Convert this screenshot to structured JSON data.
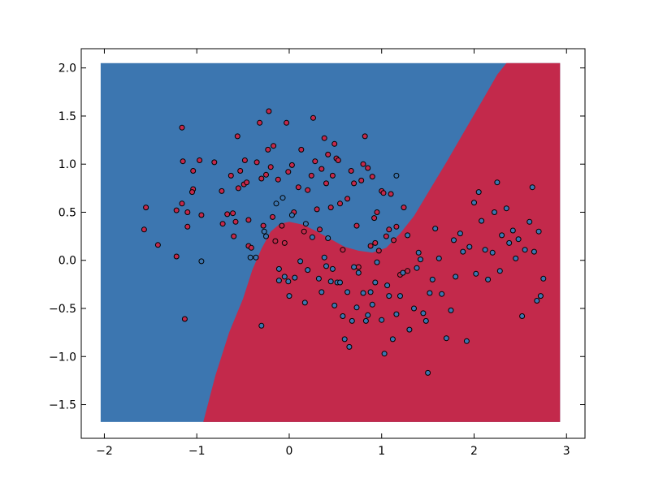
{
  "chart_data": {
    "type": "scatter",
    "title": "",
    "xlabel": "",
    "ylabel": "",
    "xlim": [
      -2.25,
      3.2
    ],
    "ylim": [
      -1.85,
      2.2
    ],
    "x_ticks": [
      {
        "value": -2,
        "label": "−2"
      },
      {
        "value": -1,
        "label": "−1"
      },
      {
        "value": 0,
        "label": "0"
      },
      {
        "value": 1,
        "label": "1"
      },
      {
        "value": 2,
        "label": "2"
      },
      {
        "value": 3,
        "label": "3"
      }
    ],
    "y_ticks": [
      {
        "value": 2.0,
        "label": "2.0"
      },
      {
        "value": 1.5,
        "label": "1.5"
      },
      {
        "value": 1.0,
        "label": "1.0"
      },
      {
        "value": 0.5,
        "label": "0.5"
      },
      {
        "value": 0.0,
        "label": "0.0"
      },
      {
        "value": -0.5,
        "label": "−0.5"
      },
      {
        "value": -1.0,
        "label": "−1.0"
      },
      {
        "value": -1.5,
        "label": "−1.5"
      }
    ],
    "grid": false,
    "legend": "none",
    "decision_region": {
      "x_range": [
        -2.04,
        2.93
      ],
      "y_range": [
        -1.68,
        2.05
      ],
      "upper_left_color": "#3c76b0",
      "lower_right_color": "#c3294b",
      "boundary": [
        [
          -0.93,
          -1.68
        ],
        [
          -0.8,
          -1.2
        ],
        [
          -0.65,
          -0.75
        ],
        [
          -0.5,
          -0.4
        ],
        [
          -0.4,
          -0.1
        ],
        [
          -0.3,
          0.12
        ],
        [
          -0.2,
          0.3
        ],
        [
          -0.1,
          0.38
        ],
        [
          0.0,
          0.4
        ],
        [
          0.15,
          0.37
        ],
        [
          0.3,
          0.3
        ],
        [
          0.45,
          0.22
        ],
        [
          0.6,
          0.14
        ],
        [
          0.75,
          0.1
        ],
        [
          0.9,
          0.08
        ],
        [
          1.05,
          0.13
        ],
        [
          1.2,
          0.28
        ],
        [
          1.35,
          0.46
        ],
        [
          1.5,
          0.7
        ],
        [
          1.7,
          1.02
        ],
        [
          1.9,
          1.35
        ],
        [
          2.1,
          1.68
        ],
        [
          2.25,
          1.93
        ],
        [
          2.35,
          2.05
        ]
      ]
    },
    "series": [
      {
        "class": 0,
        "color": "#c3294b",
        "points": [
          [
            -1.55,
            0.55
          ],
          [
            -1.57,
            0.32
          ],
          [
            -1.42,
            0.16
          ],
          [
            -1.22,
            0.04
          ],
          [
            -1.1,
            0.35
          ],
          [
            -1.1,
            0.5
          ],
          [
            -1.16,
            0.59
          ],
          [
            -1.22,
            0.52
          ],
          [
            -1.16,
            1.38
          ],
          [
            -1.15,
            1.03
          ],
          [
            -1.04,
            0.93
          ],
          [
            -1.04,
            0.74
          ],
          [
            -1.05,
            0.71
          ],
          [
            -0.95,
            0.47
          ],
          [
            -0.97,
            1.04
          ],
          [
            -0.81,
            1.02
          ],
          [
            -0.73,
            0.72
          ],
          [
            -0.72,
            0.38
          ],
          [
            -0.67,
            0.48
          ],
          [
            -0.63,
            0.88
          ],
          [
            -0.61,
            0.49
          ],
          [
            -0.6,
            0.25
          ],
          [
            -0.58,
            0.4
          ],
          [
            -0.56,
            1.29
          ],
          [
            -0.55,
            0.75
          ],
          [
            -0.53,
            0.93
          ],
          [
            -0.49,
            0.79
          ],
          [
            -0.48,
            1.04
          ],
          [
            -0.46,
            0.81
          ],
          [
            -0.44,
            0.42
          ],
          [
            -0.44,
            0.15
          ],
          [
            -0.41,
            0.13
          ],
          [
            -0.35,
            1.02
          ],
          [
            -0.32,
            1.43
          ],
          [
            -0.3,
            0.85
          ],
          [
            -0.28,
            0.36
          ],
          [
            -0.25,
            0.89
          ],
          [
            -0.23,
            1.15
          ],
          [
            -0.22,
            1.55
          ],
          [
            -0.2,
            0.97
          ],
          [
            -0.18,
            0.45
          ],
          [
            -0.17,
            1.19
          ],
          [
            -0.15,
            0.2
          ],
          [
            -0.12,
            0.84
          ],
          [
            -0.08,
            0.36
          ],
          [
            -0.05,
            0.18
          ],
          [
            -0.03,
            1.43
          ],
          [
            -0.01,
            0.92
          ],
          [
            0.03,
            0.99
          ],
          [
            0.05,
            0.5
          ],
          [
            0.1,
            0.76
          ],
          [
            0.13,
            1.15
          ],
          [
            0.16,
            0.3
          ],
          [
            0.2,
            0.73
          ],
          [
            0.24,
            0.88
          ],
          [
            0.26,
            1.48
          ],
          [
            0.28,
            1.03
          ],
          [
            0.3,
            0.53
          ],
          [
            0.33,
            0.32
          ],
          [
            0.35,
            0.95
          ],
          [
            0.38,
            1.27
          ],
          [
            0.4,
            0.8
          ],
          [
            0.42,
            1.1
          ],
          [
            0.45,
            0.55
          ],
          [
            0.47,
            0.88
          ],
          [
            0.49,
            1.21
          ],
          [
            0.51,
            1.06
          ],
          [
            0.53,
            1.04
          ],
          [
            0.55,
            0.59
          ],
          [
            0.58,
            0.11
          ],
          [
            0.63,
            0.64
          ],
          [
            0.67,
            0.93
          ],
          [
            0.7,
            0.8
          ],
          [
            0.73,
            0.36
          ],
          [
            0.75,
            -0.07
          ],
          [
            0.78,
            0.83
          ],
          [
            0.8,
            1.0
          ],
          [
            0.82,
            1.29
          ],
          [
            0.85,
            0.96
          ],
          [
            0.88,
            0.15
          ],
          [
            0.9,
            0.87
          ],
          [
            0.92,
            0.44
          ],
          [
            0.93,
            0.18
          ],
          [
            0.95,
            0.5
          ],
          [
            0.97,
            0.1
          ],
          [
            1.0,
            0.72
          ],
          [
            1.02,
            0.7
          ],
          [
            1.05,
            0.25
          ],
          [
            1.08,
            0.32
          ],
          [
            1.1,
            0.69
          ],
          [
            1.13,
            0.21
          ],
          [
            1.16,
            0.35
          ],
          [
            1.2,
            -0.15
          ],
          [
            1.24,
            0.55
          ],
          [
            1.28,
            -0.11
          ],
          [
            -1.13,
            -0.61
          ]
        ]
      },
      {
        "class": 1,
        "color": "#3c76b0",
        "points": [
          [
            -0.95,
            -0.01
          ],
          [
            -0.42,
            0.03
          ],
          [
            -0.36,
            0.03
          ],
          [
            -0.3,
            -0.68
          ],
          [
            -0.27,
            0.3
          ],
          [
            -0.25,
            0.25
          ],
          [
            -0.14,
            0.59
          ],
          [
            -0.11,
            -0.21
          ],
          [
            -0.11,
            -0.09
          ],
          [
            -0.07,
            0.65
          ],
          [
            -0.05,
            -0.17
          ],
          [
            -0.01,
            -0.22
          ],
          [
            0.0,
            -0.37
          ],
          [
            0.03,
            0.47
          ],
          [
            0.06,
            -0.18
          ],
          [
            0.12,
            -0.01
          ],
          [
            0.17,
            -0.44
          ],
          [
            0.18,
            0.38
          ],
          [
            0.2,
            -0.1
          ],
          [
            0.25,
            0.24
          ],
          [
            0.32,
            -0.19
          ],
          [
            0.35,
            -0.33
          ],
          [
            0.38,
            0.03
          ],
          [
            0.4,
            -0.06
          ],
          [
            0.42,
            0.23
          ],
          [
            0.45,
            -0.22
          ],
          [
            0.47,
            -0.09
          ],
          [
            0.49,
            -0.47
          ],
          [
            0.52,
            -0.23
          ],
          [
            0.55,
            -0.23
          ],
          [
            0.58,
            -0.58
          ],
          [
            0.6,
            -0.82
          ],
          [
            0.63,
            -0.33
          ],
          [
            0.65,
            -0.9
          ],
          [
            0.68,
            -0.63
          ],
          [
            0.7,
            -0.07
          ],
          [
            0.73,
            -0.49
          ],
          [
            0.75,
            -0.13
          ],
          [
            0.8,
            -0.34
          ],
          [
            0.83,
            -0.63
          ],
          [
            0.85,
            -0.57
          ],
          [
            0.88,
            -0.33
          ],
          [
            0.9,
            -0.46
          ],
          [
            0.93,
            -0.23
          ],
          [
            0.95,
            -0.02
          ],
          [
            1.0,
            -0.62
          ],
          [
            1.03,
            -0.97
          ],
          [
            1.06,
            -0.26
          ],
          [
            1.08,
            -0.37
          ],
          [
            1.12,
            -0.82
          ],
          [
            1.16,
            -0.56
          ],
          [
            1.2,
            -0.37
          ],
          [
            1.23,
            -0.13
          ],
          [
            1.28,
            0.26
          ],
          [
            1.3,
            -0.72
          ],
          [
            1.35,
            -0.5
          ],
          [
            1.38,
            -0.08
          ],
          [
            1.4,
            0.08
          ],
          [
            1.42,
            0.01
          ],
          [
            1.45,
            -0.55
          ],
          [
            1.48,
            -0.63
          ],
          [
            1.5,
            -1.17
          ],
          [
            1.52,
            -0.34
          ],
          [
            1.55,
            -0.2
          ],
          [
            1.58,
            0.33
          ],
          [
            1.62,
            0.02
          ],
          [
            1.65,
            -0.35
          ],
          [
            1.7,
            -0.81
          ],
          [
            1.75,
            -0.52
          ],
          [
            1.78,
            0.21
          ],
          [
            1.8,
            -0.17
          ],
          [
            1.85,
            0.28
          ],
          [
            1.88,
            0.09
          ],
          [
            1.92,
            -0.84
          ],
          [
            1.95,
            0.14
          ],
          [
            2.0,
            0.6
          ],
          [
            2.02,
            -0.14
          ],
          [
            2.05,
            0.71
          ],
          [
            2.08,
            0.41
          ],
          [
            2.12,
            0.11
          ],
          [
            2.15,
            -0.2
          ],
          [
            2.2,
            0.08
          ],
          [
            2.22,
            0.5
          ],
          [
            2.25,
            0.81
          ],
          [
            2.28,
            -0.11
          ],
          [
            2.3,
            0.26
          ],
          [
            2.35,
            0.54
          ],
          [
            2.38,
            0.18
          ],
          [
            2.42,
            0.31
          ],
          [
            2.45,
            0.02
          ],
          [
            2.48,
            0.22
          ],
          [
            2.52,
            -0.58
          ],
          [
            2.55,
            0.11
          ],
          [
            2.6,
            0.4
          ],
          [
            2.63,
            0.76
          ],
          [
            2.65,
            0.09
          ],
          [
            2.68,
            -0.42
          ],
          [
            2.7,
            0.3
          ],
          [
            2.72,
            -0.37
          ],
          [
            2.75,
            -0.19
          ],
          [
            1.16,
            0.88
          ]
        ]
      }
    ]
  }
}
